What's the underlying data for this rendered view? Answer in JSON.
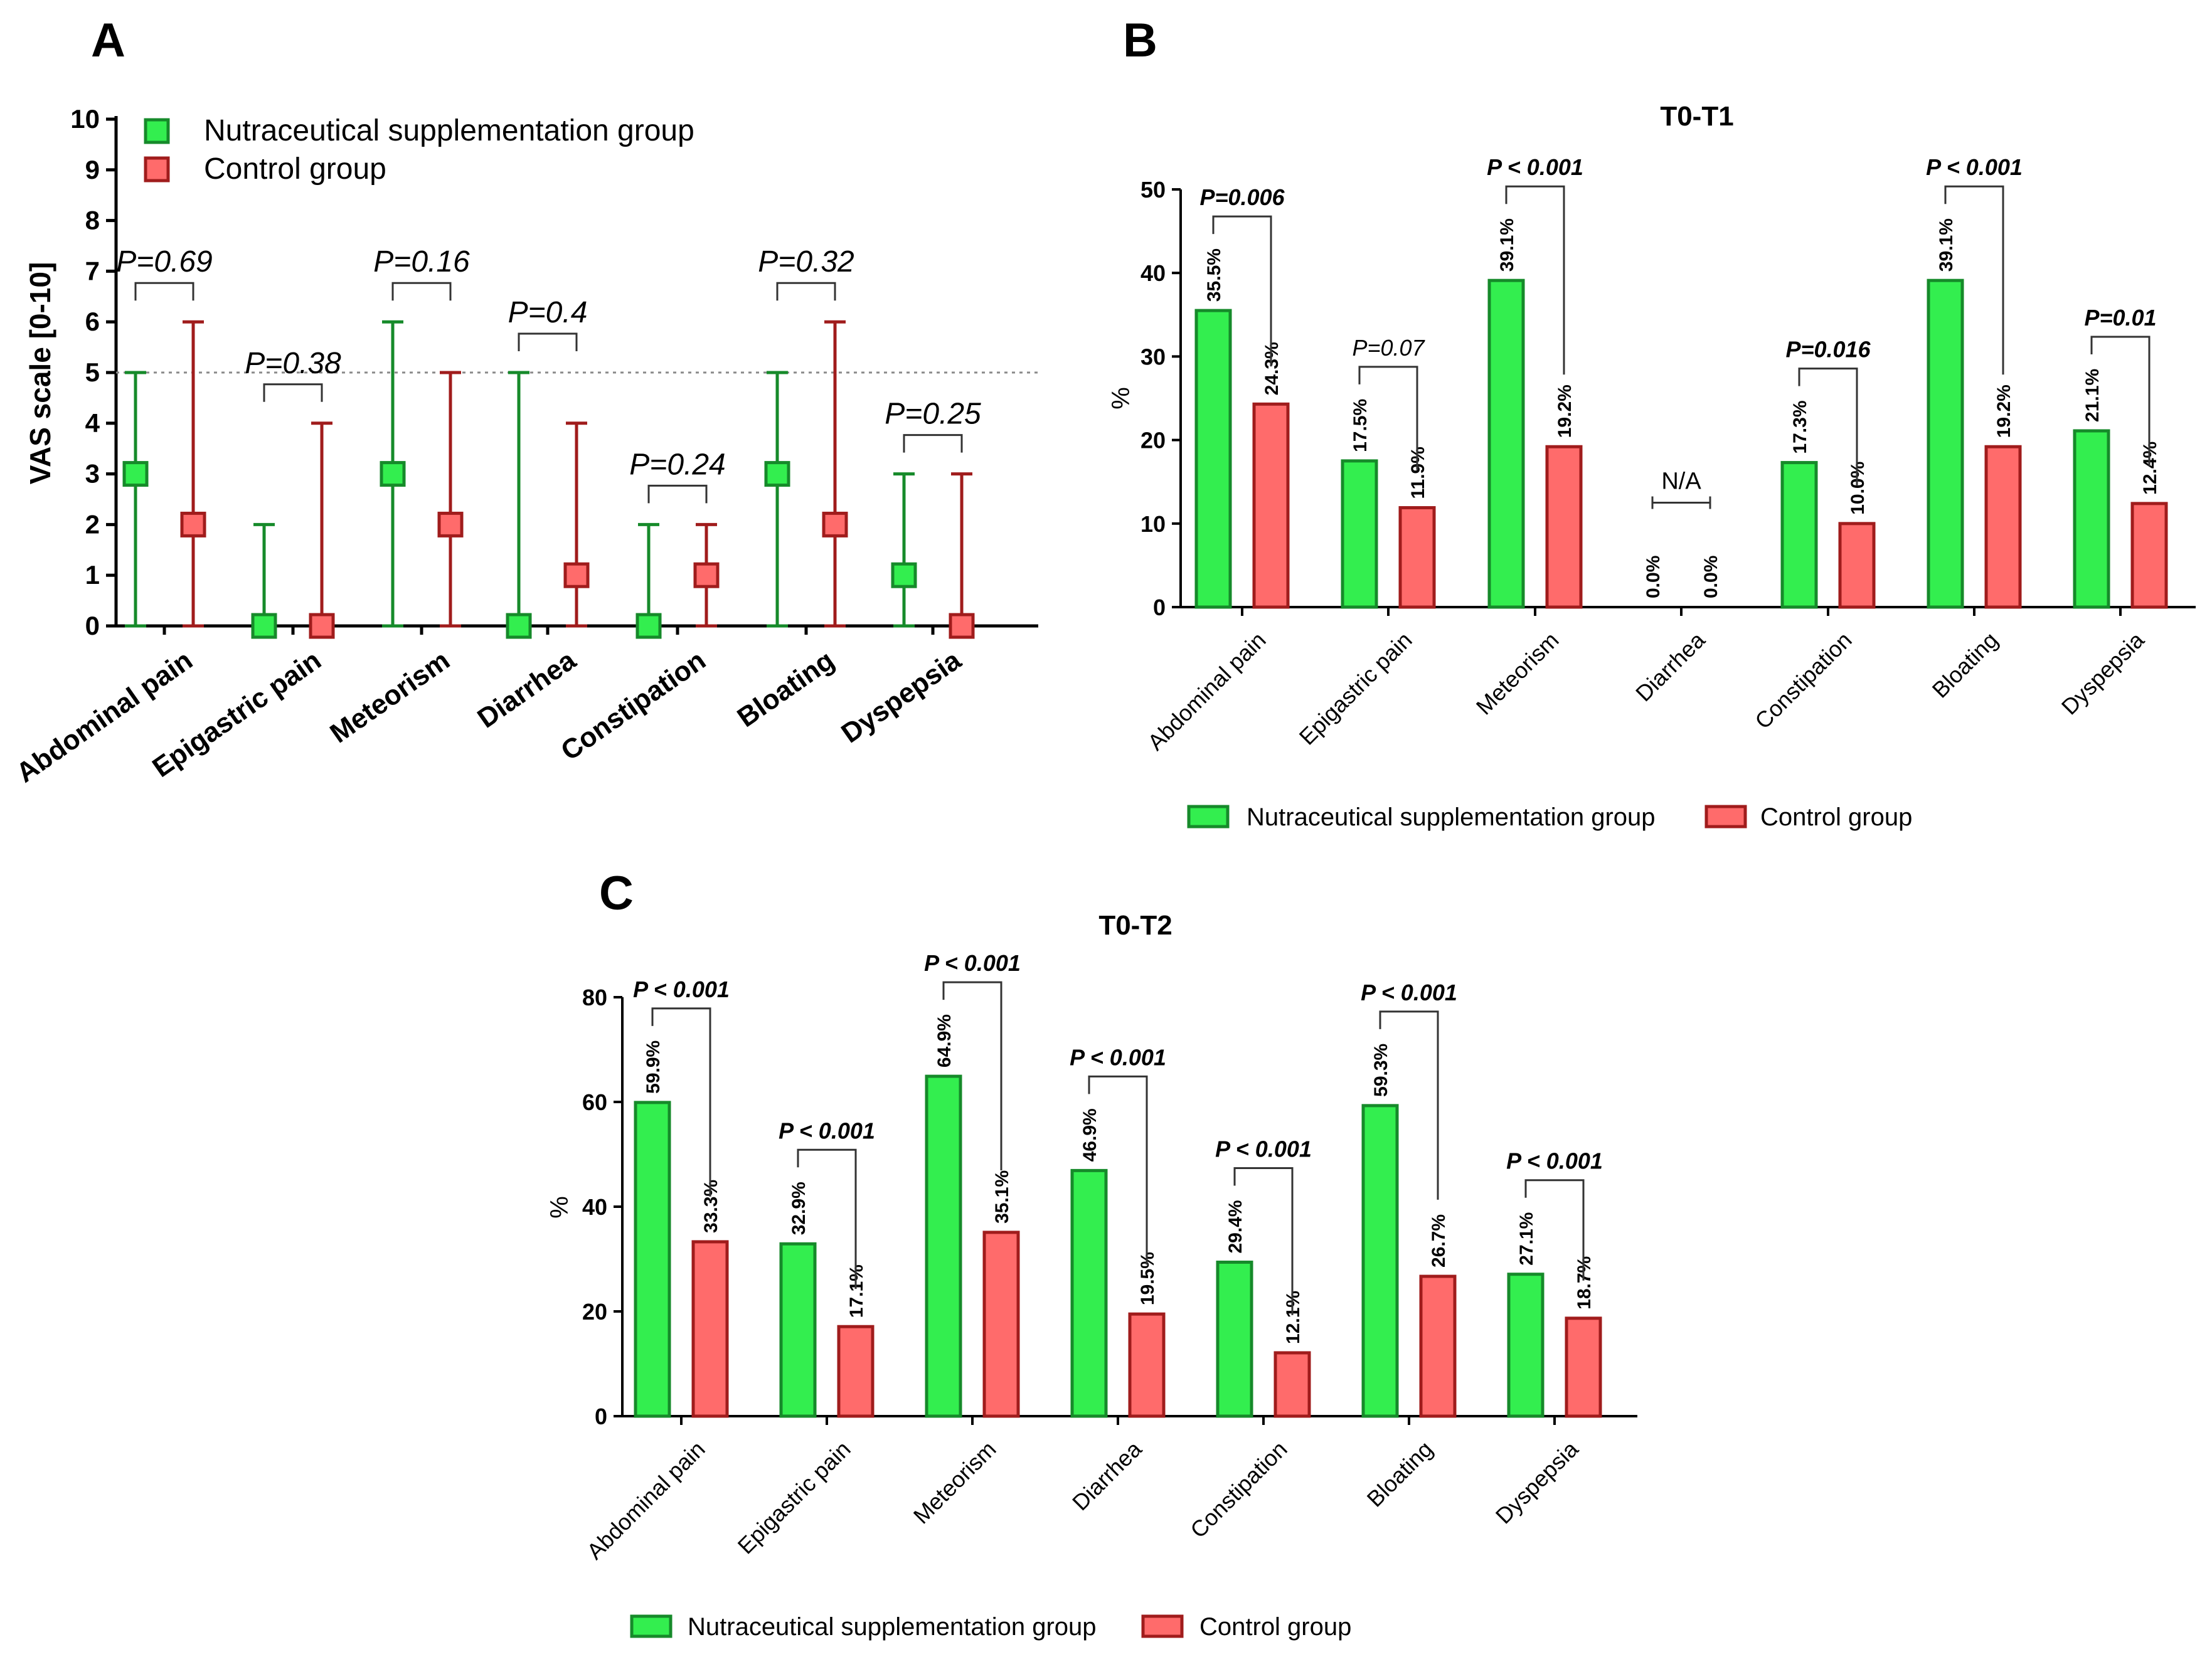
{
  "colors": {
    "green_fill": "#33ee4f",
    "green_stroke": "#168a2a",
    "red_fill": "#ff6b6b",
    "red_stroke": "#a01c1c",
    "axis": "#000000",
    "dotted_line": "#8a8a8a"
  },
  "legend_labels": {
    "nutra": "Nutraceutical supplementation group",
    "control": "Control group"
  },
  "chart_data": [
    {
      "panel": "A",
      "type": "scatter",
      "subtype": "median-range",
      "title": "",
      "ylabel": "VAS scale [0-10]",
      "xlabel": "",
      "ylim": [
        0,
        10
      ],
      "yticks": [
        "0",
        "1",
        "2",
        "3",
        "4",
        "5",
        "6",
        "7",
        "8",
        "9",
        "10"
      ],
      "reference_line": 5,
      "categories": [
        "Abdominal pain",
        "Epigastric pain",
        "Meteorism",
        "Diarrhea",
        "Constipation",
        "Bloating",
        "Dyspepsia"
      ],
      "series": [
        {
          "name": "Nutraceutical supplementation group",
          "median": [
            3,
            0,
            3,
            0,
            0,
            3,
            1
          ],
          "min": [
            0,
            0,
            0,
            0,
            0,
            0,
            0
          ],
          "max": [
            5,
            2,
            6,
            5,
            2,
            5,
            3
          ]
        },
        {
          "name": "Control group",
          "median": [
            2,
            0,
            2,
            1,
            1,
            2,
            0
          ],
          "min": [
            0,
            0,
            0,
            0,
            0,
            0,
            0
          ],
          "max": [
            6,
            4,
            5,
            4,
            2,
            6,
            3
          ]
        }
      ],
      "pvalues": [
        "P=0.69",
        "P=0.38",
        "P=0.16",
        "P=0.4",
        "P=0.24",
        "P=0.32",
        "P=0.25"
      ],
      "legend": "top-left"
    },
    {
      "panel": "B",
      "type": "bar",
      "title": "T0-T1",
      "ylabel": "%",
      "xlabel": "",
      "ylim": [
        0,
        50
      ],
      "yticks": [
        "0",
        "10",
        "20",
        "30",
        "40",
        "50"
      ],
      "categories": [
        "Abdominal pain",
        "Epigastric pain",
        "Meteorism",
        "Diarrhea",
        "Constipation",
        "Bloating",
        "Dyspepsia"
      ],
      "series": [
        {
          "name": "Nutraceutical supplementation group",
          "values": [
            35.5,
            17.5,
            39.1,
            0.0,
            17.3,
            39.1,
            21.1
          ],
          "labels": [
            "35.5%",
            "17.5%",
            "39.1%",
            "0.0%",
            "17.3%",
            "39.1%",
            "21.1%"
          ]
        },
        {
          "name": "Control group",
          "values": [
            24.3,
            11.9,
            19.2,
            0.0,
            10.0,
            19.2,
            12.4
          ],
          "labels": [
            "24.3%",
            "11.9%",
            "19.2%",
            "0.0%",
            "10.0%",
            "19.2%",
            "12.4%"
          ]
        }
      ],
      "pvalues": [
        "P=0.006",
        "P=0.07",
        "P < 0.001",
        "N/A",
        "P=0.016",
        "P < 0.001",
        "P=0.01"
      ],
      "legend": "bottom"
    },
    {
      "panel": "C",
      "type": "bar",
      "title": "T0-T2",
      "ylabel": "%",
      "xlabel": "",
      "ylim": [
        0,
        80
      ],
      "yticks": [
        "0",
        "20",
        "40",
        "60",
        "80"
      ],
      "categories": [
        "Abdominal pain",
        "Epigastric pain",
        "Meteorism",
        "Diarrhea",
        "Constipation",
        "Bloating",
        "Dyspepsia"
      ],
      "series": [
        {
          "name": "Nutraceutical supplementation group",
          "values": [
            59.9,
            32.9,
            64.9,
            46.9,
            29.4,
            59.3,
            27.1
          ],
          "labels": [
            "59.9%",
            "32.9%",
            "64.9%",
            "46.9%",
            "29.4%",
            "59.3%",
            "27.1%"
          ]
        },
        {
          "name": "Control group",
          "values": [
            33.3,
            17.1,
            35.1,
            19.5,
            12.1,
            26.7,
            18.7
          ],
          "labels": [
            "33.3%",
            "17.1%",
            "35.1%",
            "19.5%",
            "12.1%",
            "26.7%",
            "18.7%"
          ]
        }
      ],
      "pvalues": [
        "P < 0.001",
        "P < 0.001",
        "P < 0.001",
        "P < 0.001",
        "P < 0.001",
        "P < 0.001",
        "P < 0.001"
      ],
      "legend": "bottom"
    }
  ]
}
